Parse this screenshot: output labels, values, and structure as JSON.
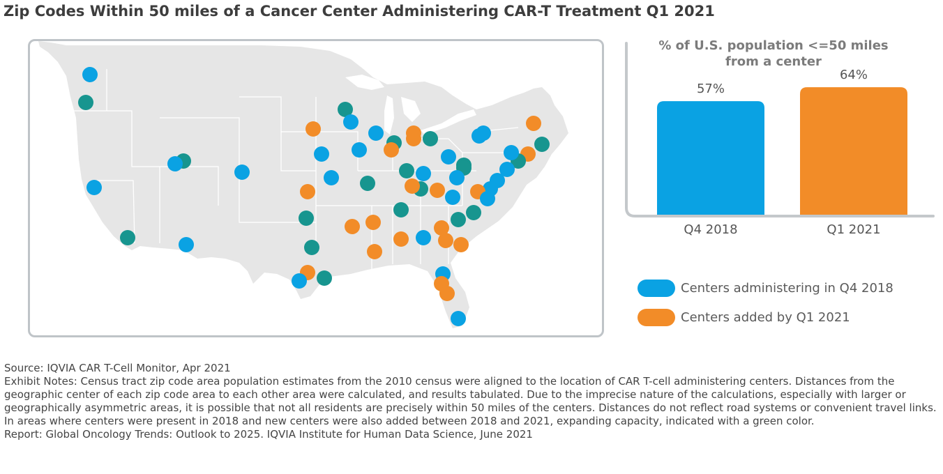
{
  "title": "Zip Codes Within 50 miles of a Cancer Center Administering CAR-T Treatment Q1 2021",
  "colors": {
    "q4_2018": "#0aa2e3",
    "q1_2021": "#f28c28",
    "expanded": "#17958f",
    "land": "#e6e6e6",
    "borders": "#ffffff"
  },
  "map": {
    "alt": "U.S. map of zip-code areas within 50 miles of CAR-T centers",
    "legend_keys": [
      "q4_2018",
      "q1_2021",
      "expanded"
    ]
  },
  "chart_data": {
    "type": "bar",
    "title": "% of U.S. population <=50 miles from a center",
    "title_lines": [
      "% of U.S. population <=50 miles",
      "from a center"
    ],
    "categories": [
      "Q4 2018",
      "Q1 2021"
    ],
    "values": [
      57,
      64
    ],
    "value_labels": [
      "57%",
      "64%"
    ],
    "colors": [
      "#0aa2e3",
      "#f28c28"
    ],
    "ylim": [
      0,
      70
    ],
    "grid": false
  },
  "legend": {
    "items": [
      {
        "label": "Centers administering in Q4 2018",
        "color": "#0aa2e3"
      },
      {
        "label": "Centers added by Q1 2021",
        "color": "#f28c28"
      }
    ]
  },
  "footnotes": {
    "source": "Source: IQVIA CAR T-Cell Monitor, Apr 2021",
    "notes": "Exhibit Notes: Census tract zip code area population estimates from the 2010 census were aligned to the location of CAR T-cell administering centers. Distances from the geographic center of each zip code area to each other area were calculated, and results tabulated. Due to the imprecise nature of the calculations, especially with larger or geographically asymmetric areas, it is possible that not all residents are precisely within 50 miles of the centers. Distances do not reflect road systems or convenient travel links. In areas where centers were present in 2018 and new centers were also added between 2018 and 2021, expanding capacity, indicated with a green color.",
    "report": "Report: Global Oncology Trends: Outlook to 2025. IQVIA Institute for Human Data Science, June 2021"
  }
}
